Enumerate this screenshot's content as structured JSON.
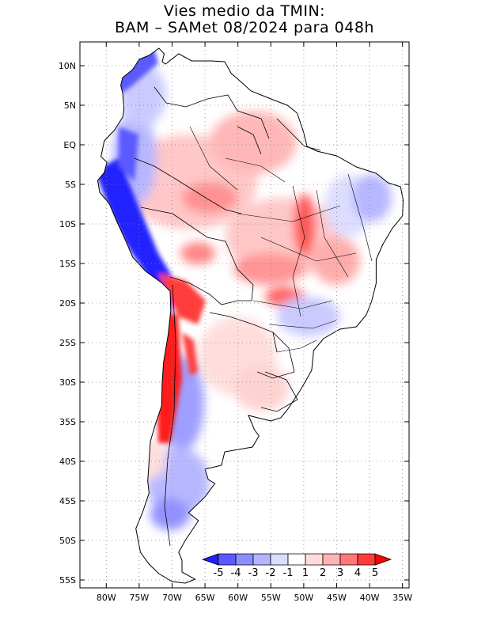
{
  "title": {
    "line1": "Vies medio da TMIN:",
    "line2": "BAM – SAMet 08/2024  para 048h"
  },
  "map": {
    "lon_range": [
      -84,
      -34
    ],
    "lat_range": [
      -56,
      13
    ],
    "lon_ticks": [
      {
        "value": -80,
        "label": "80W"
      },
      {
        "value": -75,
        "label": "75W"
      },
      {
        "value": -70,
        "label": "70W"
      },
      {
        "value": -65,
        "label": "65W"
      },
      {
        "value": -60,
        "label": "60W"
      },
      {
        "value": -55,
        "label": "55W"
      },
      {
        "value": -50,
        "label": "50W"
      },
      {
        "value": -45,
        "label": "45W"
      },
      {
        "value": -40,
        "label": "40W"
      },
      {
        "value": -35,
        "label": "35W"
      }
    ],
    "lat_ticks": [
      {
        "value": 10,
        "label": "10N"
      },
      {
        "value": 5,
        "label": "5N"
      },
      {
        "value": 0,
        "label": "EQ"
      },
      {
        "value": -5,
        "label": "5S"
      },
      {
        "value": -10,
        "label": "10S"
      },
      {
        "value": -15,
        "label": "15S"
      },
      {
        "value": -20,
        "label": "20S"
      },
      {
        "value": -25,
        "label": "25S"
      },
      {
        "value": -30,
        "label": "30S"
      },
      {
        "value": -35,
        "label": "35S"
      },
      {
        "value": -40,
        "label": "40S"
      },
      {
        "value": -45,
        "label": "45S"
      },
      {
        "value": -50,
        "label": "50S"
      },
      {
        "value": -55,
        "label": "55S"
      }
    ]
  },
  "colorbar": {
    "labels": [
      "-5",
      "-4",
      "-3",
      "-2",
      "-1",
      "1",
      "2",
      "3",
      "4",
      "5"
    ],
    "colors": [
      "#1e1eff",
      "#5a5aff",
      "#8c8cff",
      "#b4b4ff",
      "#dcdcff",
      "#ffffff",
      "#ffdcdc",
      "#ffb4b4",
      "#ff7878",
      "#ff3c3c",
      "#ff0000"
    ]
  }
}
